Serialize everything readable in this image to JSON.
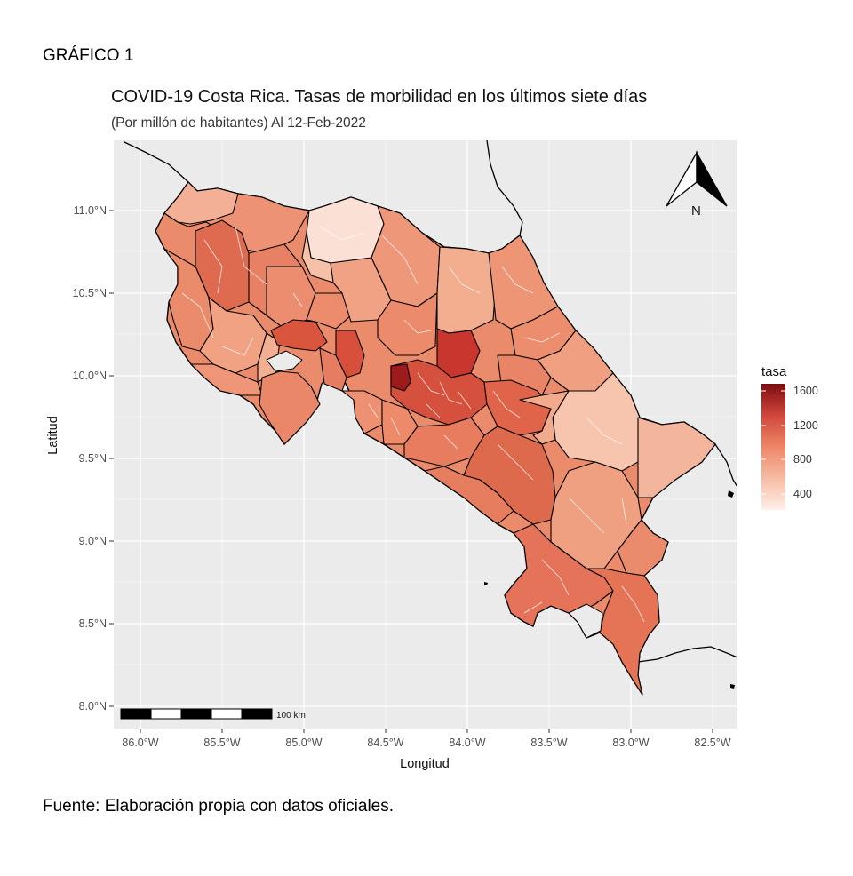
{
  "document": {
    "heading": "GRÁFICO 1",
    "source": "Fuente: Elaboración propia con datos oficiales."
  },
  "map": {
    "title": "COVID-19 Costa Rica. Tasas de morbilidad en los últimos siete días",
    "subtitle": "(Por millón de habitantes) Al 12-Feb-2022",
    "xlabel": "Longitud",
    "ylabel": "Latitud",
    "x_ticks": [
      "86.0°W",
      "85.5°W",
      "85.0°W",
      "84.5°W",
      "84.0°W",
      "83.5°W",
      "83.0°W",
      "82.5°W"
    ],
    "y_ticks": [
      "11.0°N",
      "10.5°N",
      "10.0°N",
      "9.5°N",
      "9.0°N",
      "8.5°N",
      "8.0°N"
    ],
    "xlim": [
      -86.1,
      -82.3
    ],
    "ylim": [
      7.85,
      11.35
    ],
    "panel_color": "#ebebeb",
    "north_arrow": {
      "label": "N",
      "icon": "north-arrow-icon"
    },
    "scale_bar": {
      "label": "100 km"
    }
  },
  "legend": {
    "title": "tasa",
    "ticks": [
      "1600",
      "1200",
      "800",
      "400"
    ],
    "tick_values": [
      1600,
      1200,
      800,
      400
    ],
    "range": [
      200,
      1750
    ],
    "color_low": "#fff0ea",
    "color_high": "#7d0c12"
  }
}
